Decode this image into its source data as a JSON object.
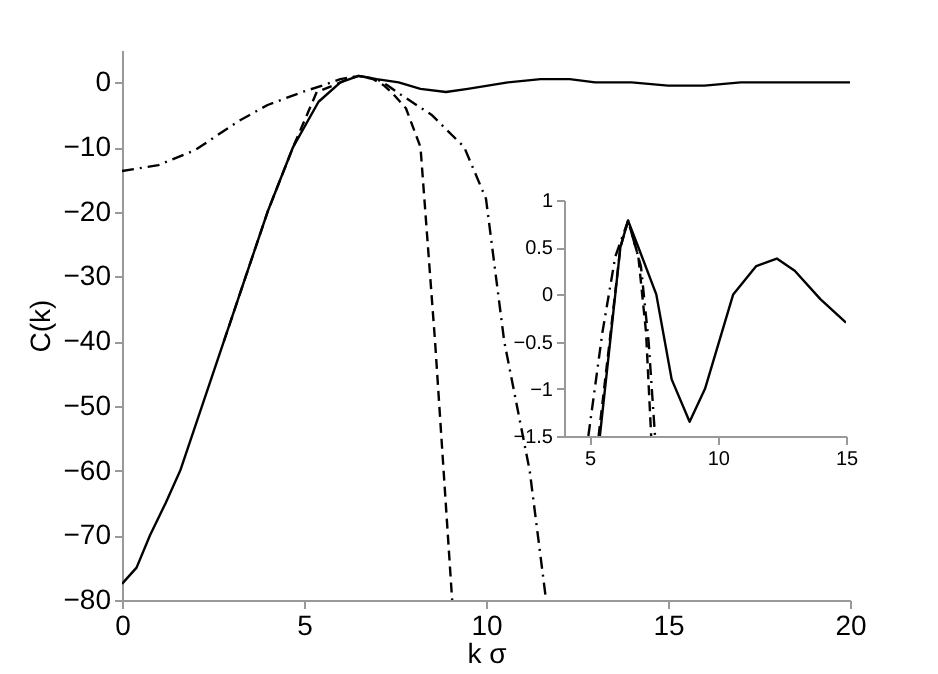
{
  "chart_data": [
    {
      "type": "line",
      "xlabel": "k σ",
      "ylabel": "C(k)",
      "xlim": [
        0,
        20
      ],
      "ylim": [
        -80,
        5
      ],
      "xticks": [
        0,
        5,
        10,
        15,
        20
      ],
      "yticks": [
        -80,
        -70,
        -60,
        -50,
        -40,
        -30,
        -20,
        -10,
        0
      ],
      "grid": false,
      "marker": "none",
      "series": [
        {
          "color": "#000000",
          "line_style": "solid",
          "x": [
            0,
            0.4,
            0.77,
            1.2,
            1.6,
            2.2,
            2.8,
            3.4,
            4,
            4.7,
            5.4,
            6,
            6.5,
            7,
            7.6,
            8.2,
            8.9,
            9.5,
            10.6,
            11.5,
            12.3,
            13,
            14,
            15,
            16,
            17,
            18,
            19,
            20
          ],
          "values": [
            -77.5,
            -75,
            -70,
            -65,
            -60,
            -50,
            -40,
            -30,
            -20,
            -10,
            -3,
            0,
            1,
            0.5,
            0,
            -1,
            -1.5,
            -1,
            0,
            0.5,
            0.5,
            0,
            0,
            -0.5,
            -0.5,
            0,
            0,
            0,
            0
          ]
        },
        {
          "color": "#000000",
          "line_style": "dashed",
          "x": [
            2.8,
            3.4,
            4,
            4.7,
            5.35,
            5.8,
            6.2,
            6.5,
            6.9,
            7.2,
            7.4,
            7.8,
            8.2,
            8.6,
            9.07
          ],
          "values": [
            -40,
            -30,
            -20,
            -10,
            -1.5,
            -0.5,
            0.5,
            1,
            0.5,
            -0.5,
            -1.5,
            -4,
            -10,
            -40,
            -80
          ]
        },
        {
          "color": "#000000",
          "line_style": "dotted",
          "x": [
            0,
            1,
            2,
            3.2,
            4,
            4.95,
            5.5,
            6,
            6.5,
            7,
            7.3,
            7.55,
            8.5,
            9.4,
            10,
            10.5,
            11.2,
            11.65
          ],
          "values": [
            -13.7,
            -12.8,
            -10.5,
            -6,
            -3.5,
            -1.5,
            -0.5,
            0.5,
            1,
            0.5,
            -0.5,
            -1.5,
            -5,
            -10,
            -18,
            -40,
            -60,
            -80
          ]
        }
      ]
    },
    {
      "type": "line",
      "xlim": [
        4,
        15
      ],
      "ylim": [
        -1.5,
        1
      ],
      "xticks": [
        5,
        10,
        15
      ],
      "yticks": [
        -1.5,
        -1,
        -0.5,
        0,
        0.5,
        1
      ],
      "grid": false,
      "marker": "none",
      "series": [
        {
          "color": "#000000",
          "line_style": "solid",
          "x": [
            5.4,
            5.8,
            6.2,
            6.5,
            6.9,
            7.6,
            8.2,
            8.9,
            9.5,
            10.6,
            11.5,
            12.3,
            13,
            14,
            15
          ],
          "values": [
            -1.5,
            -0.5,
            0.5,
            0.78,
            0.5,
            0,
            -0.9,
            -1.35,
            -1,
            0,
            0.3,
            0.38,
            0.25,
            -0.05,
            -0.3
          ]
        },
        {
          "color": "#000000",
          "line_style": "dashed",
          "x": [
            5.35,
            5.8,
            6.2,
            6.5,
            6.9,
            7.2,
            7.4
          ],
          "values": [
            -1.5,
            -0.45,
            0.5,
            0.78,
            0.4,
            -0.4,
            -1.5
          ]
        },
        {
          "color": "#000000",
          "line_style": "dotted",
          "x": [
            4.95,
            5.5,
            6,
            6.5,
            7,
            7.3,
            7.55
          ],
          "values": [
            -1.5,
            -0.4,
            0.4,
            0.78,
            0.3,
            -0.5,
            -1.5
          ]
        }
      ]
    }
  ]
}
